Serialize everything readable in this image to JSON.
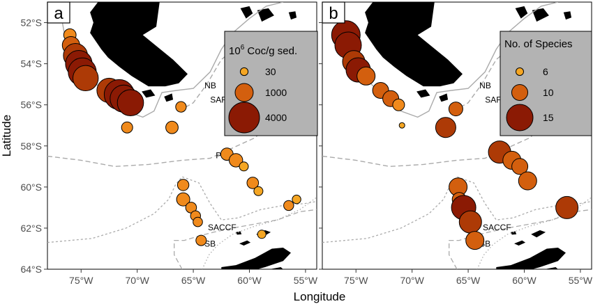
{
  "figure": {
    "xlabel": "Longitude",
    "ylabel": "Latitude",
    "x_ticks": [
      "75°W",
      "70°W",
      "65°W",
      "60°W",
      "55°W"
    ],
    "x_tick_values": [
      -75,
      -70,
      -65,
      -60,
      -55
    ],
    "y_ticks": [
      "52°S",
      "54°S",
      "56°S",
      "58°S",
      "60°S",
      "62°S",
      "64°S"
    ],
    "y_tick_values": [
      -52,
      -54,
      -56,
      -58,
      -60,
      -62,
      -64
    ],
    "xlim": [
      -78,
      -54
    ],
    "ylim": [
      -64,
      -51
    ],
    "front_labels": [
      {
        "text": "NB",
        "lon": -64.0,
        "lat": -55.2
      },
      {
        "text": "SAF",
        "lon": -63.5,
        "lat": -55.9
      },
      {
        "text": "PF",
        "lon": -63.0,
        "lat": -58.6
      },
      {
        "text": "SACCF",
        "lon": -63.7,
        "lat": -62.1
      },
      {
        "text": "SB",
        "lon": -64.0,
        "lat": -62.9
      }
    ],
    "colors": {
      "land": "#000000",
      "panel_bg": "#ffffff",
      "legend_bg": "#b3b3b3",
      "front_line": "#aaaaaa",
      "marker_low": "#f5a623",
      "marker_mid": "#d35f0e",
      "marker_high": "#8b1a04"
    }
  },
  "chart_data": [
    {
      "type": "scatter",
      "panel": "a",
      "legend_title_base": "10",
      "legend_title_exp": "6",
      "legend_title_rest": " Coc/g sed.",
      "legend_placement": "top-right",
      "legend": [
        {
          "label": "30",
          "value": 30
        },
        {
          "label": "1000",
          "value": 1000
        },
        {
          "label": "4000",
          "value": 4000
        }
      ],
      "value_max": 4000,
      "points": [
        {
          "lon": -76.0,
          "lat": -52.6,
          "value": 300
        },
        {
          "lon": -75.9,
          "lat": -53.1,
          "value": 900
        },
        {
          "lon": -75.5,
          "lat": -53.6,
          "value": 2200
        },
        {
          "lon": -75.2,
          "lat": -54.0,
          "value": 2800
        },
        {
          "lon": -74.9,
          "lat": -54.4,
          "value": 3200
        },
        {
          "lon": -74.6,
          "lat": -54.7,
          "value": 2500
        },
        {
          "lon": -72.5,
          "lat": -55.3,
          "value": 2300
        },
        {
          "lon": -71.6,
          "lat": -55.5,
          "value": 3800
        },
        {
          "lon": -71.2,
          "lat": -55.7,
          "value": 3000
        },
        {
          "lon": -70.6,
          "lat": -55.9,
          "value": 2700
        },
        {
          "lon": -70.9,
          "lat": -57.1,
          "value": 200
        },
        {
          "lon": -66.9,
          "lat": -57.1,
          "value": 300
        },
        {
          "lon": -66.1,
          "lat": -56.1,
          "value": 160
        },
        {
          "lon": -62.0,
          "lat": -58.4,
          "value": 300
        },
        {
          "lon": -61.2,
          "lat": -58.7,
          "value": 400
        },
        {
          "lon": -60.5,
          "lat": -59.0,
          "value": 80
        },
        {
          "lon": -59.7,
          "lat": -59.8,
          "value": 230
        },
        {
          "lon": -59.2,
          "lat": -60.2,
          "value": 80
        },
        {
          "lon": -65.9,
          "lat": -59.9,
          "value": 220
        },
        {
          "lon": -65.9,
          "lat": -60.6,
          "value": 380
        },
        {
          "lon": -65.2,
          "lat": -61.0,
          "value": 180
        },
        {
          "lon": -64.8,
          "lat": -61.4,
          "value": 130
        },
        {
          "lon": -64.6,
          "lat": -61.7,
          "value": 100
        },
        {
          "lon": -64.3,
          "lat": -62.6,
          "value": 150
        },
        {
          "lon": -58.9,
          "lat": -62.3,
          "value": 50
        },
        {
          "lon": -56.5,
          "lat": -60.9,
          "value": 130
        },
        {
          "lon": -55.8,
          "lat": -60.6,
          "value": 60
        }
      ]
    },
    {
      "type": "scatter",
      "panel": "b",
      "legend_title": "No. of Species",
      "legend_placement": "top-right",
      "legend": [
        {
          "label": "6",
          "value": 6
        },
        {
          "label": "10",
          "value": 10
        },
        {
          "label": "15",
          "value": 15
        }
      ],
      "value_max": 16,
      "points": [
        {
          "lon": -75.9,
          "lat": -52.6,
          "value": 16
        },
        {
          "lon": -75.7,
          "lat": -53.1,
          "value": 15
        },
        {
          "lon": -75.2,
          "lat": -53.9,
          "value": 13
        },
        {
          "lon": -74.8,
          "lat": -54.3,
          "value": 14
        },
        {
          "lon": -74.1,
          "lat": -54.6,
          "value": 11
        },
        {
          "lon": -72.8,
          "lat": -55.3,
          "value": 10
        },
        {
          "lon": -71.9,
          "lat": -55.7,
          "value": 10
        },
        {
          "lon": -71.2,
          "lat": -56.0,
          "value": 8
        },
        {
          "lon": -70.9,
          "lat": -57.0,
          "value": 5
        },
        {
          "lon": -67.0,
          "lat": -57.1,
          "value": 12
        },
        {
          "lon": -66.1,
          "lat": -56.2,
          "value": 9
        },
        {
          "lon": -62.2,
          "lat": -58.3,
          "value": 13
        },
        {
          "lon": -61.1,
          "lat": -58.7,
          "value": 11
        },
        {
          "lon": -60.4,
          "lat": -59.0,
          "value": 10
        },
        {
          "lon": -59.7,
          "lat": -59.7,
          "value": 11
        },
        {
          "lon": -65.9,
          "lat": -60.0,
          "value": 11
        },
        {
          "lon": -65.8,
          "lat": -60.6,
          "value": 9
        },
        {
          "lon": -65.4,
          "lat": -61.0,
          "value": 14
        },
        {
          "lon": -64.8,
          "lat": -61.7,
          "value": 13
        },
        {
          "lon": -64.4,
          "lat": -62.6,
          "value": 11
        },
        {
          "lon": -56.2,
          "lat": -61.0,
          "value": 13
        }
      ]
    }
  ]
}
